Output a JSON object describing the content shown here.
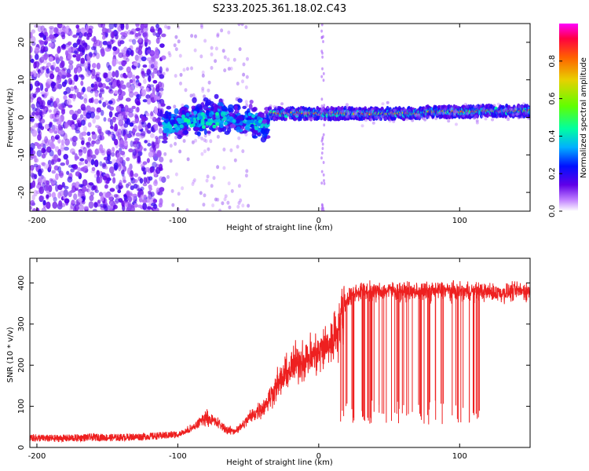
{
  "title": "S233.2025.361.18.02.C43",
  "colors": {
    "series": "#ee2020",
    "axis": "#000000",
    "background": "#ffffff",
    "colormap": [
      "#ff00ff",
      "#ff0040",
      "#ff6000",
      "#e8d000",
      "#60ff00",
      "#00ffa0",
      "#00b0ff",
      "#0010ff",
      "#6000e8",
      "#ffffff"
    ]
  },
  "chart_data": [
    {
      "id": "spectrogram",
      "type": "heatmap",
      "title": "S233.2025.361.18.02.C43",
      "xlabel": "Height of straight line (km)",
      "ylabel": "Frequency (Hz)",
      "xlim": [
        -205,
        150
      ],
      "ylim": [
        -25,
        25
      ],
      "xticks": [
        -200,
        -100,
        0,
        100
      ],
      "yticks": [
        -20,
        -10,
        0,
        10,
        20
      ],
      "colorbar": {
        "label": "Normalized spectral amplitude",
        "range": [
          0.0,
          1.0
        ],
        "ticks": [
          0.0,
          0.2,
          0.4,
          0.6,
          0.8
        ]
      },
      "features": [
        {
          "name": "noise",
          "x_range": [
            -205,
            -110
          ],
          "freq_range": [
            -25,
            25
          ],
          "amplitude": 0.15
        },
        {
          "name": "onset",
          "x_range": [
            -110,
            -35
          ],
          "freq_center": -2.5,
          "freq_width": 6,
          "amplitude": 0.35
        },
        {
          "name": "carrier",
          "x_range": [
            -35,
            150
          ],
          "freq_center": 1.0,
          "freq_width": 2,
          "amplitude": 0.9
        }
      ]
    },
    {
      "id": "snr",
      "type": "line",
      "xlabel": "Height of straight line (km)",
      "ylabel": "SNR (10 * v/v)",
      "xlim": [
        -205,
        150
      ],
      "ylim": [
        0,
        460
      ],
      "xticks": [
        -200,
        -100,
        0,
        100
      ],
      "yticks": [
        0,
        100,
        200,
        300,
        400
      ],
      "series": [
        {
          "name": "SNR",
          "x": [
            -205,
            -190,
            -175,
            -160,
            -145,
            -130,
            -115,
            -100,
            -95,
            -90,
            -85,
            -80,
            -75,
            -70,
            -65,
            -60,
            -55,
            -50,
            -45,
            -40,
            -35,
            -30,
            -25,
            -20,
            -15,
            -10,
            -5,
            0,
            5,
            10,
            15,
            18,
            20,
            25,
            30,
            40,
            50,
            60,
            70,
            80,
            90,
            100,
            110,
            120,
            130,
            140,
            150
          ],
          "values": [
            22,
            20,
            21,
            23,
            22,
            24,
            26,
            30,
            38,
            45,
            60,
            75,
            65,
            55,
            42,
            40,
            50,
            70,
            85,
            95,
            120,
            150,
            170,
            190,
            210,
            215,
            220,
            230,
            245,
            260,
            305,
            345,
            360,
            375,
            380,
            378,
            382,
            380,
            378,
            380,
            382,
            378,
            380,
            378,
            375,
            380,
            380
          ]
        }
      ]
    }
  ]
}
